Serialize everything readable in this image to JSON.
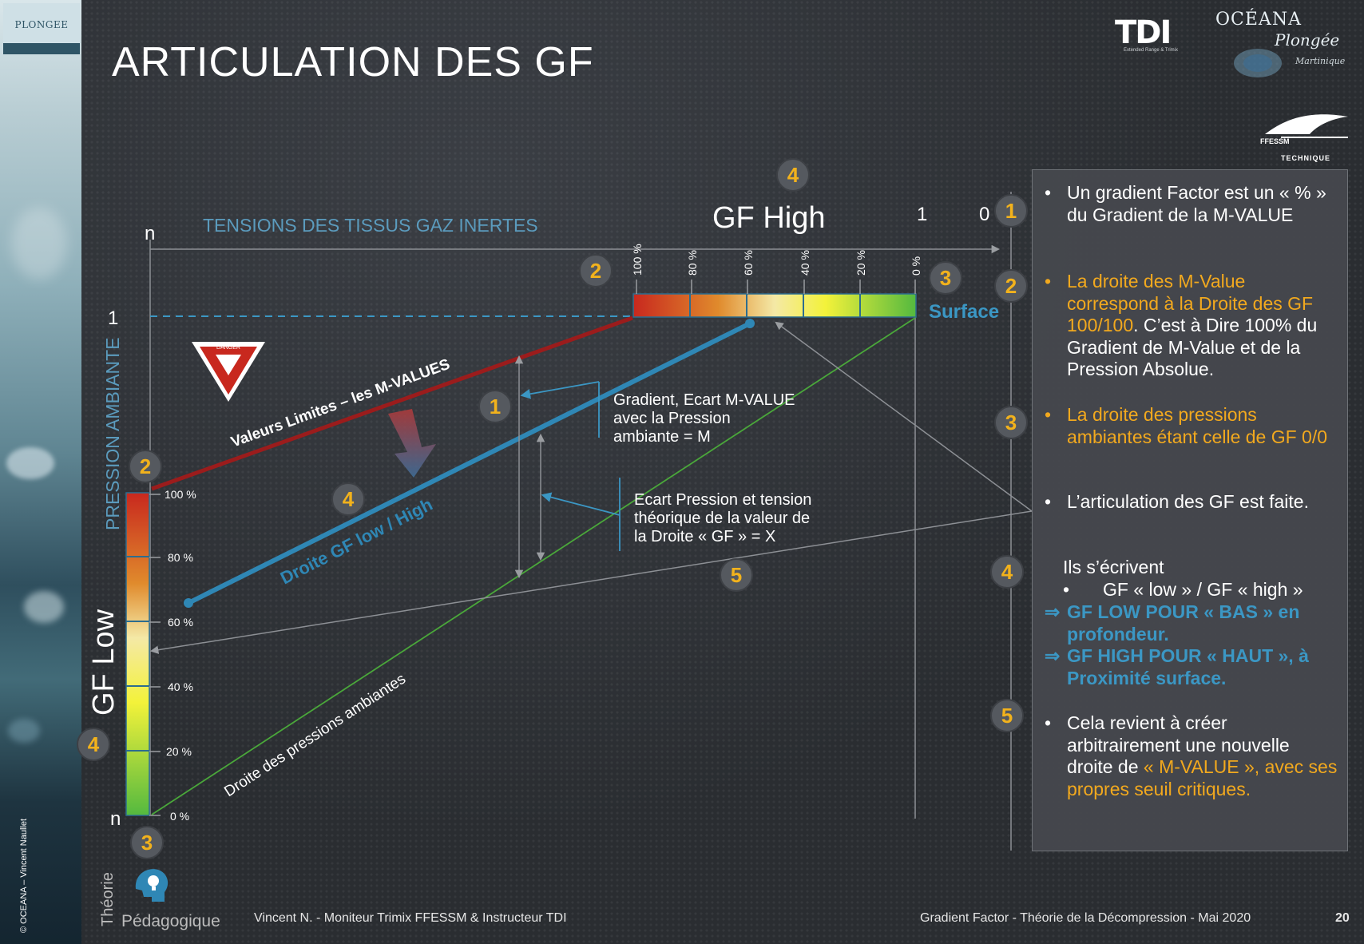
{
  "slide": {
    "tab_label": "PLONGEE",
    "title": "ARTICULATION DES GF",
    "copyright": "© OCEANA – Vincent Naullet",
    "theorie": "Théorie",
    "pedagogique": "Pédagogique",
    "footer_left": "Vincent N. - Moniteur Trimix FFESSM & Instructeur TDI",
    "footer_right": "Gradient Factor - Théorie de la Décompression - Mai 2020",
    "page_number": "20"
  },
  "logos": {
    "tdi": "TDI",
    "tdi_sub": "Extended Range & Trimix",
    "oceana": "OCÉANA",
    "plongee": "Plongée",
    "martinique": "Martinique",
    "ffessm": "FFESSM",
    "technique": "TECHNIQUE"
  },
  "diagram": {
    "top_axis_label": "TENSIONS DES TISSUS GAZ INERTES",
    "left_axis_label": "PRESSION AMBIANTE",
    "axis_n_top": "n",
    "axis_n_bottom": "n",
    "axis_one": "1",
    "gf_high": "GF High",
    "gf_low": "GF Low",
    "top_one": "1",
    "top_zero": "0",
    "surface": "Surface",
    "gf_high_ticks": [
      "100 %",
      "80 %",
      "60 %",
      "40 %",
      "20 %",
      "0 %"
    ],
    "gf_low_ticks": [
      "100 %",
      "80 %",
      "60 %",
      "40 %",
      "20 %",
      "0 %"
    ],
    "m_values_label": "Valeurs Limites – les M-VALUES",
    "gf_line_label": "Droite GF low / High",
    "ambient_line_label": "Droite des pressions ambiantes",
    "gradient_note": [
      "Gradient, Ecart M-VALUE",
      "avec la Pression",
      "ambiante = M"
    ],
    "ecart_note": [
      "Ecart Pression et tension",
      "théorique de la valeur de",
      "la Droite « GF » = X"
    ],
    "danger_text": "DANGER",
    "badges": [
      "1",
      "2",
      "3",
      "4",
      "5"
    ],
    "colors": {
      "m_value_line": "#9b1c1c",
      "gf_line": "#2f87b5",
      "ambient_line": "#4aa83a",
      "badge_fill": "#55595f",
      "badge_text": "#f2b21c",
      "orange_text": "#f2a91e",
      "blue_text": "#3b97c4"
    }
  },
  "info": {
    "item1": "Un gradient Factor est un « % » du Gradient de la M-VALUE",
    "item2_orange": "La droite des M-Value correspond à la Droite des GF 100/100",
    "item2_white": ". C’est à Dire 100% du Gradient de M-Value et de la Pression Absolue.",
    "item3": "La droite des pressions ambiantes étant celle de GF 0/0",
    "item4": "L’articulation des GF est faite.",
    "ils_ecrivent": "Ils s’écrivent",
    "formula": "GF « low » / GF « high »",
    "gf_low_line": "GF LOW POUR « BAS » en profondeur.",
    "gf_high_line": "GF HIGH POUR « HAUT », à Proximité surface.",
    "item5_white": "Cela revient à créer arbitrairement une nouvelle droite de ",
    "item5_orange": "« M-VALUE », avec ses propres seuil critiques.",
    "arrow": "⇒",
    "bullet": "•"
  }
}
